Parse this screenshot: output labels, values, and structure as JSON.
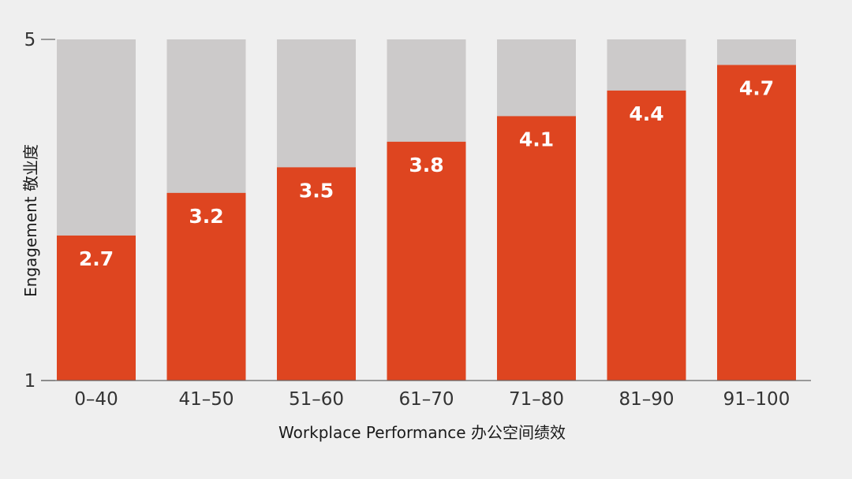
{
  "chart_data": {
    "type": "bar",
    "stacked_background": true,
    "categories": [
      "0–40",
      "41–50",
      "51–60",
      "61–70",
      "71–80",
      "81–90",
      "91–100"
    ],
    "values": [
      2.7,
      3.2,
      3.5,
      3.8,
      4.1,
      4.4,
      4.7
    ],
    "data_labels": [
      "2.7",
      "3.2",
      "3.5",
      "3.8",
      "4.1",
      "4.4",
      "4.7"
    ],
    "ylim": [
      1,
      5
    ],
    "yticks": [
      {
        "value": 5,
        "label": "5"
      },
      {
        "value": 1,
        "label": "1"
      }
    ],
    "title": "",
    "xlabel": "Workplace Performance 办公空间绩效",
    "ylabel": "Engagement 敬业度",
    "grid": false,
    "legend": "none"
  },
  "colors": {
    "background": "#efefef",
    "bar": "#de4520",
    "bar_track": "#cccaca",
    "axis": "#666666",
    "value_text": "#ffffff"
  }
}
